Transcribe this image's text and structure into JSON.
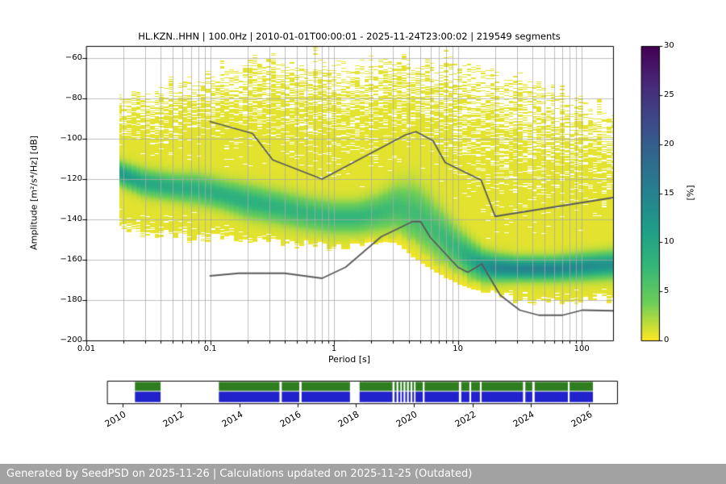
{
  "title": "HL.KZN..HHN | 100.0Hz | 2010-01-01T00:00:01 - 2025-11-24T23:00:02 | 219549 segments",
  "footer": {
    "text": "Generated by SeedPSD on 2025-11-26 | Calculations updated on 2025-11-25 (Outdated)"
  },
  "axes": {
    "xlabel": "Period [s]",
    "ylabel": "Amplitude [m²/s⁴/Hz] [dB]",
    "x_ticks": [
      {
        "value": 0.01,
        "label": "0.01"
      },
      {
        "value": 0.1,
        "label": "0.1"
      },
      {
        "value": 1,
        "label": "1"
      },
      {
        "value": 10,
        "label": "10"
      },
      {
        "value": 100,
        "label": "100"
      }
    ],
    "y_ticks": [
      {
        "value": -60,
        "label": "−60"
      },
      {
        "value": -80,
        "label": "−80"
      },
      {
        "value": -100,
        "label": "−100"
      },
      {
        "value": -120,
        "label": "−120"
      },
      {
        "value": -140,
        "label": "−140"
      },
      {
        "value": -160,
        "label": "−160"
      },
      {
        "value": -180,
        "label": "−180"
      },
      {
        "value": -200,
        "label": "−200"
      }
    ]
  },
  "colorbar": {
    "label": "[%]",
    "min": 0,
    "max": 30,
    "tick_values": [
      0,
      5,
      10,
      15,
      20,
      25,
      30
    ],
    "tick_labels": [
      "0",
      "5",
      "10",
      "15",
      "20",
      "25",
      "30"
    ],
    "colormap": "viridis reversed (0% = yellow, 30% = dark purple)",
    "stops": [
      {
        "t": 0.0,
        "color": "#440154"
      },
      {
        "t": 0.125,
        "color": "#482878"
      },
      {
        "t": 0.25,
        "color": "#3e4989"
      },
      {
        "t": 0.375,
        "color": "#31688e"
      },
      {
        "t": 0.5,
        "color": "#26828e"
      },
      {
        "t": 0.625,
        "color": "#1f9e89"
      },
      {
        "t": 0.75,
        "color": "#35b779"
      },
      {
        "t": 0.875,
        "color": "#6ece58"
      },
      {
        "t": 1.0,
        "color": "#fde725"
      }
    ]
  },
  "colors": {
    "footer_bg": "#a2a2a2",
    "grid": "#aaaaaa",
    "noise_model": "#5a5a5a",
    "availability_green": "#2e7d1e",
    "availability_blue": "#2222cc"
  },
  "chart_data": {
    "type": "heatmap",
    "title": "HL.KZN..HHN | 100.0Hz | 2010-01-01T00:00:01 - 2025-11-24T23:00:02 | 219549 segments",
    "xlabel": "Period [s]",
    "ylabel": "Amplitude [m²/s⁴/Hz] [dB]",
    "xscale": "log",
    "xlim": [
      0.01,
      179
    ],
    "ylim": [
      -200,
      -54
    ],
    "grid": true,
    "colorbar_label": "[%]",
    "colorbar_range": [
      0,
      30
    ],
    "ppsd_distribution": {
      "description": "PPSD probability density: mode curve with spread and envelope of occupied dB range vs period",
      "period_min_data": 0.0185,
      "periods": [
        0.018,
        0.03,
        0.05,
        0.08,
        0.13,
        0.2,
        0.35,
        0.6,
        1.0,
        1.5,
        2.2,
        3.2,
        4.5,
        6.0,
        8.0,
        10,
        13,
        16,
        20,
        30,
        60,
        100,
        179
      ],
      "mode_db": [
        -117,
        -122,
        -124,
        -125,
        -128,
        -131,
        -134,
        -137,
        -139,
        -139,
        -137,
        -134,
        -137,
        -143,
        -150,
        -155,
        -160,
        -163,
        -164,
        -164.5,
        -164.5,
        -163.5,
        -162.5
      ],
      "spread_db": [
        3.5,
        4,
        4,
        4.5,
        4.5,
        5,
        5,
        5,
        5,
        5,
        5.5,
        7,
        9,
        8.5,
        7.5,
        6.5,
        5.5,
        4.5,
        4,
        3.5,
        3.5,
        3.8,
        4
      ],
      "peak_percent": [
        11,
        9,
        8.5,
        8,
        8,
        8,
        7.5,
        7,
        7,
        7,
        6.5,
        6,
        6,
        6,
        6.5,
        7,
        9,
        12,
        13.5,
        14,
        14,
        13,
        12
      ],
      "upper_envelope_db": [
        -80,
        -76,
        -73,
        -70,
        -66,
        -62,
        -60,
        -61,
        -63,
        -62,
        -61,
        -60,
        -61,
        -61,
        -60,
        -61,
        -62,
        -63,
        -65,
        -70,
        -76,
        -81,
        -92
      ],
      "lower_envelope_db": [
        -146,
        -148,
        -149,
        -150,
        -150,
        -151,
        -152,
        -153,
        -154,
        -153,
        -151,
        -149,
        -153,
        -160,
        -164,
        -168,
        -171,
        -174,
        -177,
        -181,
        -182,
        -181,
        -180
      ]
    },
    "noise_models": {
      "color": "#5a5a5a",
      "nhnm": {
        "name": "Peterson New High Noise Model",
        "periods": [
          0.1,
          0.22,
          0.32,
          0.8,
          3.8,
          4.6,
          6.3,
          7.9,
          15.4,
          20.0,
          179.0
        ],
        "db": [
          -91.5,
          -97.4,
          -110.5,
          -120.0,
          -98.0,
          -96.5,
          -101.0,
          -111.8,
          -120.5,
          -138.5,
          -129.2
        ]
      },
      "nlnm": {
        "name": "Peterson New Low Noise Model",
        "periods": [
          0.1,
          0.17,
          0.4,
          0.8,
          1.24,
          2.4,
          4.3,
          5.0,
          6.0,
          10.0,
          12.0,
          15.6,
          21.9,
          31.6,
          45.0,
          70.0,
          101.0,
          179.0
        ],
        "db": [
          -168.0,
          -166.7,
          -166.7,
          -169.2,
          -163.7,
          -148.6,
          -141.1,
          -141.1,
          -149.0,
          -163.7,
          -166.2,
          -162.1,
          -177.5,
          -185.0,
          -187.5,
          -187.5,
          -185.0,
          -185.3
        ]
      }
    },
    "availability_timeline": {
      "year_start": 2009.47,
      "year_end": 2026.97,
      "year_ticks": [
        2010,
        2012,
        2014,
        2016,
        2018,
        2020,
        2022,
        2024,
        2026
      ],
      "segments_years": [
        [
          2010.42,
          2011.3
        ],
        [
          2013.3,
          2015.38
        ],
        [
          2015.46,
          2016.06
        ],
        [
          2016.14,
          2017.8
        ],
        [
          2018.13,
          2019.26
        ],
        [
          2019.33,
          2019.4
        ],
        [
          2019.46,
          2019.53
        ],
        [
          2019.58,
          2019.64
        ],
        [
          2019.7,
          2019.76
        ],
        [
          2019.82,
          2019.88
        ],
        [
          2019.94,
          2020.0
        ],
        [
          2020.05,
          2020.3
        ],
        [
          2020.36,
          2021.54
        ],
        [
          2021.62,
          2021.9
        ],
        [
          2021.96,
          2022.26
        ],
        [
          2022.32,
          2023.74
        ],
        [
          2023.82,
          2024.06
        ],
        [
          2024.14,
          2025.28
        ],
        [
          2025.34,
          2026.14
        ]
      ],
      "row_colors": {
        "top": "#2e7d1e",
        "bottom": "#2222cc"
      }
    }
  }
}
